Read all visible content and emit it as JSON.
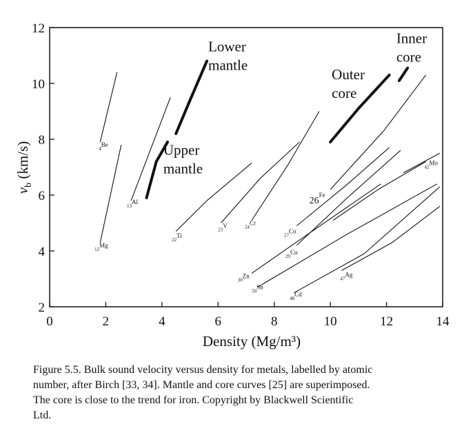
{
  "chart_data": {
    "type": "line",
    "xlabel": "Density (Mg/m³)",
    "ylabel_main": "v",
    "ylabel_sub": "b",
    "ylabel_unit": " (km/s)",
    "xlim": [
      0,
      14
    ],
    "ylim": [
      2,
      12
    ],
    "x_ticks": [
      "0",
      "2",
      "4",
      "6",
      "8",
      "10",
      "12",
      "14"
    ],
    "y_ticks": [
      "2",
      "4",
      "6",
      "8",
      "10",
      "12"
    ],
    "grid": false,
    "thin_series": [
      {
        "points": [
          [
            1.8,
            7.9
          ],
          [
            2.4,
            10.4
          ]
        ],
        "label": "4Be",
        "lx": 1.75,
        "ly": 7.65
      },
      {
        "points": [
          [
            1.8,
            4.3
          ],
          [
            2.55,
            7.8
          ]
        ],
        "label": "12Mg",
        "lx": 1.6,
        "ly": 4.05
      },
      {
        "points": [
          [
            2.9,
            5.8
          ],
          [
            4.3,
            9.5
          ]
        ],
        "label": "13Al",
        "lx": 2.75,
        "ly": 5.6
      },
      {
        "points": [
          [
            4.5,
            4.7
          ],
          [
            5.6,
            5.8
          ],
          [
            7.2,
            7.15
          ]
        ],
        "label": "22Ti",
        "lx": 4.35,
        "ly": 4.4
      },
      {
        "points": [
          [
            6.1,
            5.0
          ],
          [
            7.5,
            6.6
          ],
          [
            8.9,
            7.9
          ]
        ],
        "label": "23V",
        "lx": 6.0,
        "ly": 4.75
      },
      {
        "points": [
          [
            7.2,
            5.1
          ],
          [
            8.5,
            7.1
          ],
          [
            9.6,
            9.0
          ]
        ],
        "label": "24Cr",
        "lx": 6.95,
        "ly": 4.85
      },
      {
        "points": [
          [
            8.8,
            4.9
          ],
          [
            10.5,
            6.3
          ],
          [
            12.1,
            7.7
          ]
        ],
        "label": "27Co",
        "lx": 8.35,
        "ly": 4.55
      },
      {
        "points": [
          [
            8.8,
            4.2
          ],
          [
            10.6,
            5.9
          ],
          [
            12.5,
            7.6
          ]
        ],
        "label": "29Cu",
        "lx": 8.4,
        "ly": 3.8
      },
      {
        "points": [
          [
            10.1,
            5.1
          ],
          [
            11.7,
            6.2
          ],
          [
            13.4,
            7.2
          ]
        ],
        "label": "",
        "lx": 0,
        "ly": 0
      },
      {
        "points": [
          [
            7.2,
            3.2
          ],
          [
            9.2,
            4.6
          ],
          [
            11.8,
            6.4
          ]
        ],
        "label": "30Zn",
        "lx": 6.7,
        "ly": 2.95
      },
      {
        "points": [
          [
            7.4,
            2.7
          ],
          [
            10.6,
            4.6
          ],
          [
            13.8,
            6.4
          ]
        ],
        "label": "50Sn",
        "lx": 7.2,
        "ly": 2.55
      },
      {
        "points": [
          [
            10.4,
            3.3
          ],
          [
            12.2,
            4.3
          ],
          [
            13.9,
            5.6
          ]
        ],
        "label": "47Ag",
        "lx": 10.35,
        "ly": 3.0
      },
      {
        "points": [
          [
            8.7,
            2.5
          ],
          [
            11.2,
            3.9
          ],
          [
            13.9,
            6.3
          ]
        ],
        "label": "48Cd",
        "lx": 8.55,
        "ly": 2.3
      },
      {
        "points": [
          [
            10.0,
            6.2
          ],
          [
            11.9,
            8.3
          ],
          [
            13.4,
            10.3
          ]
        ],
        "label": "",
        "lx": 0,
        "ly": 0
      },
      {
        "points": [
          [
            12.6,
            6.8
          ],
          [
            13.9,
            7.5
          ]
        ],
        "label": "42Mo",
        "lx": 13.35,
        "ly": 7.0
      }
    ],
    "iron_label": {
      "text": "26Fe",
      "x": 9.25,
      "y": 5.75
    },
    "thick_series": [
      {
        "name": "Upper mantle",
        "points": [
          [
            3.45,
            5.9
          ],
          [
            3.8,
            7.2
          ],
          [
            4.2,
            7.9
          ]
        ]
      },
      {
        "name": "Lower mantle",
        "points": [
          [
            4.5,
            8.2
          ],
          [
            5.0,
            9.4
          ],
          [
            5.6,
            10.8
          ]
        ]
      },
      {
        "name": "Outer core",
        "points": [
          [
            10.0,
            7.9
          ],
          [
            11.0,
            9.1
          ],
          [
            12.1,
            10.3
          ]
        ]
      },
      {
        "name": "Inner core",
        "points": [
          [
            12.45,
            10.1
          ],
          [
            12.75,
            10.55
          ]
        ]
      }
    ],
    "series_labels": [
      {
        "lines": [
          "Lower",
          "mantle"
        ],
        "x": 5.65,
        "y": 11.15
      },
      {
        "lines": [
          "Upper",
          "mantle"
        ],
        "x": 4.05,
        "y": 7.45
      },
      {
        "lines": [
          "Outer",
          "core"
        ],
        "x": 10.05,
        "y": 10.15
      },
      {
        "lines": [
          "Inner",
          "core"
        ],
        "x": 12.35,
        "y": 11.45
      }
    ]
  },
  "caption": {
    "lines": [
      "Figure 5.5. Bulk sound velocity versus density for metals, labelled by atomic",
      "number, after Birch [33, 34]. Mantle and core curves [25] are superimposed.",
      "The core is close to the trend for iron. Copyright by Blackwell Scientific",
      "Ltd."
    ]
  }
}
